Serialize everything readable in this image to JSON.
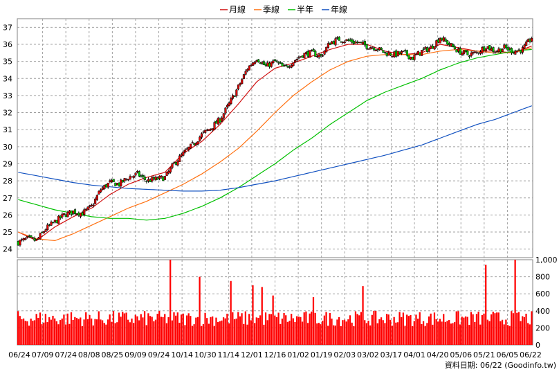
{
  "chart_data": [
    {
      "type": "line",
      "subtype": "candlestick-with-moving-averages",
      "legend": [
        {
          "name": "月線",
          "color": "#d01010"
        },
        {
          "name": "季線",
          "color": "#ff7010"
        },
        {
          "name": "半年",
          "color": "#00c000"
        },
        {
          "name": "年線",
          "color": "#1050c0"
        }
      ],
      "legend_position": "top-center",
      "x_tick_labels": [
        "06/24",
        "07/09",
        "07/24",
        "08/08",
        "08/25",
        "09/09",
        "09/24",
        "10/14",
        "10/30",
        "11/14",
        "12/01",
        "12/16",
        "01/02",
        "01/19",
        "02/03",
        "03/02",
        "03/17",
        "04/01",
        "04/20",
        "05/06",
        "05/21",
        "06/05",
        "06/22"
      ],
      "ylim": [
        23.5,
        37.5
      ],
      "y_tick_labels": [
        "24",
        "25",
        "26",
        "27",
        "28",
        "29",
        "30",
        "31",
        "32",
        "33",
        "34",
        "35",
        "36",
        "37"
      ],
      "y_ticks": [
        24,
        25,
        26,
        27,
        28,
        29,
        30,
        31,
        32,
        33,
        34,
        35,
        36,
        37
      ],
      "grid": true,
      "close_anchors": [
        [
          0,
          24.4
        ],
        [
          5,
          24.6
        ],
        [
          10,
          24.5
        ],
        [
          15,
          25.2
        ],
        [
          20,
          25.6
        ],
        [
          25,
          26.0
        ],
        [
          30,
          26.2
        ],
        [
          35,
          26.1
        ],
        [
          40,
          26.5
        ],
        [
          45,
          27.5
        ],
        [
          50,
          27.9
        ],
        [
          55,
          27.8
        ],
        [
          60,
          28.2
        ],
        [
          65,
          28.4
        ],
        [
          70,
          28.0
        ],
        [
          75,
          28.1
        ],
        [
          80,
          28.2
        ],
        [
          85,
          29.0
        ],
        [
          90,
          29.6
        ],
        [
          95,
          30.1
        ],
        [
          100,
          30.7
        ],
        [
          105,
          31.1
        ],
        [
          110,
          31.6
        ],
        [
          115,
          32.5
        ],
        [
          120,
          33.5
        ],
        [
          125,
          34.6
        ],
        [
          130,
          35.2
        ],
        [
          135,
          34.7
        ],
        [
          140,
          35.0
        ],
        [
          145,
          34.6
        ],
        [
          150,
          35.0
        ],
        [
          155,
          35.4
        ],
        [
          160,
          35.5
        ],
        [
          165,
          35.3
        ],
        [
          170,
          36.1
        ],
        [
          175,
          36.3
        ],
        [
          180,
          36.2
        ],
        [
          185,
          36.1
        ],
        [
          190,
          35.9
        ],
        [
          195,
          35.8
        ],
        [
          200,
          35.5
        ],
        [
          205,
          35.4
        ],
        [
          210,
          35.5
        ],
        [
          215,
          35.2
        ],
        [
          220,
          35.6
        ],
        [
          225,
          35.8
        ],
        [
          230,
          36.4
        ],
        [
          235,
          36.0
        ],
        [
          240,
          35.6
        ],
        [
          245,
          35.4
        ],
        [
          250,
          35.5
        ],
        [
          255,
          35.9
        ],
        [
          260,
          35.6
        ],
        [
          265,
          35.8
        ],
        [
          270,
          35.6
        ],
        [
          275,
          35.7
        ],
        [
          280,
          36.4
        ]
      ],
      "moving_averages": {
        "月線": [
          [
            0,
            25.0
          ],
          [
            10,
            24.5
          ],
          [
            20,
            25.3
          ],
          [
            30,
            25.9
          ],
          [
            40,
            26.4
          ],
          [
            50,
            27.2
          ],
          [
            60,
            27.8
          ],
          [
            70,
            28.2
          ],
          [
            80,
            28.5
          ],
          [
            90,
            29.6
          ],
          [
            100,
            30.3
          ],
          [
            110,
            31.3
          ],
          [
            120,
            32.5
          ],
          [
            130,
            33.8
          ],
          [
            140,
            34.6
          ],
          [
            150,
            34.9
          ],
          [
            160,
            35.3
          ],
          [
            170,
            35.7
          ],
          [
            180,
            36.0
          ],
          [
            190,
            36.0
          ],
          [
            200,
            35.6
          ],
          [
            210,
            35.4
          ],
          [
            220,
            35.5
          ],
          [
            230,
            36.0
          ],
          [
            240,
            35.8
          ],
          [
            250,
            35.6
          ],
          [
            260,
            35.6
          ],
          [
            270,
            35.5
          ],
          [
            280,
            35.9
          ]
        ],
        "季線": [
          [
            0,
            25.0
          ],
          [
            10,
            24.6
          ],
          [
            20,
            24.5
          ],
          [
            30,
            24.9
          ],
          [
            40,
            25.4
          ],
          [
            50,
            25.9
          ],
          [
            60,
            26.4
          ],
          [
            70,
            26.8
          ],
          [
            80,
            27.3
          ],
          [
            90,
            27.8
          ],
          [
            100,
            28.4
          ],
          [
            110,
            29.1
          ],
          [
            120,
            29.9
          ],
          [
            130,
            30.9
          ],
          [
            140,
            32.0
          ],
          [
            150,
            33.0
          ],
          [
            160,
            33.8
          ],
          [
            170,
            34.5
          ],
          [
            180,
            35.0
          ],
          [
            190,
            35.3
          ],
          [
            200,
            35.4
          ],
          [
            210,
            35.4
          ],
          [
            220,
            35.4
          ],
          [
            230,
            35.6
          ],
          [
            240,
            35.7
          ],
          [
            250,
            35.6
          ],
          [
            260,
            35.5
          ],
          [
            270,
            35.5
          ],
          [
            280,
            35.8
          ]
        ],
        "半年": [
          [
            0,
            26.9
          ],
          [
            10,
            26.6
          ],
          [
            20,
            26.3
          ],
          [
            30,
            26.1
          ],
          [
            40,
            25.9
          ],
          [
            50,
            25.8
          ],
          [
            60,
            25.8
          ],
          [
            70,
            25.7
          ],
          [
            80,
            25.8
          ],
          [
            90,
            26.1
          ],
          [
            100,
            26.5
          ],
          [
            110,
            27.0
          ],
          [
            120,
            27.6
          ],
          [
            130,
            28.3
          ],
          [
            140,
            29.0
          ],
          [
            150,
            29.8
          ],
          [
            160,
            30.5
          ],
          [
            170,
            31.3
          ],
          [
            180,
            32.0
          ],
          [
            190,
            32.7
          ],
          [
            200,
            33.2
          ],
          [
            210,
            33.6
          ],
          [
            220,
            34.0
          ],
          [
            230,
            34.5
          ],
          [
            240,
            34.9
          ],
          [
            250,
            35.2
          ],
          [
            260,
            35.4
          ],
          [
            270,
            35.6
          ],
          [
            280,
            35.7
          ]
        ],
        "年線": [
          [
            0,
            28.5
          ],
          [
            10,
            28.3
          ],
          [
            20,
            28.1
          ],
          [
            30,
            27.9
          ],
          [
            40,
            27.75
          ],
          [
            50,
            27.65
          ],
          [
            60,
            27.55
          ],
          [
            70,
            27.5
          ],
          [
            80,
            27.45
          ],
          [
            90,
            27.4
          ],
          [
            100,
            27.4
          ],
          [
            110,
            27.45
          ],
          [
            120,
            27.6
          ],
          [
            130,
            27.8
          ],
          [
            140,
            28.0
          ],
          [
            150,
            28.25
          ],
          [
            160,
            28.5
          ],
          [
            170,
            28.75
          ],
          [
            180,
            29.0
          ],
          [
            190,
            29.25
          ],
          [
            200,
            29.5
          ],
          [
            210,
            29.8
          ],
          [
            220,
            30.1
          ],
          [
            230,
            30.5
          ],
          [
            240,
            30.9
          ],
          [
            250,
            31.3
          ],
          [
            260,
            31.6
          ],
          [
            270,
            32.0
          ],
          [
            280,
            32.4
          ]
        ]
      }
    },
    {
      "type": "bar",
      "series_name": "volume",
      "ylim": [
        0,
        1000
      ],
      "y_tick_labels": [
        "0",
        "200",
        "400",
        "600",
        "800",
        "1,000"
      ],
      "y_ticks": [
        0,
        200,
        400,
        600,
        800,
        1000
      ],
      "bar_color": "#ff0000",
      "spikes": [
        [
          83,
          1000
        ],
        [
          99,
          800
        ],
        [
          116,
          750
        ],
        [
          128,
          700
        ],
        [
          133,
          680
        ],
        [
          139,
          580
        ],
        [
          161,
          560
        ],
        [
          188,
          690
        ],
        [
          255,
          940
        ],
        [
          271,
          1000
        ]
      ],
      "grid": true
    }
  ],
  "footer_text": "資料日期: 06/22 (Goodinfo.tw)"
}
